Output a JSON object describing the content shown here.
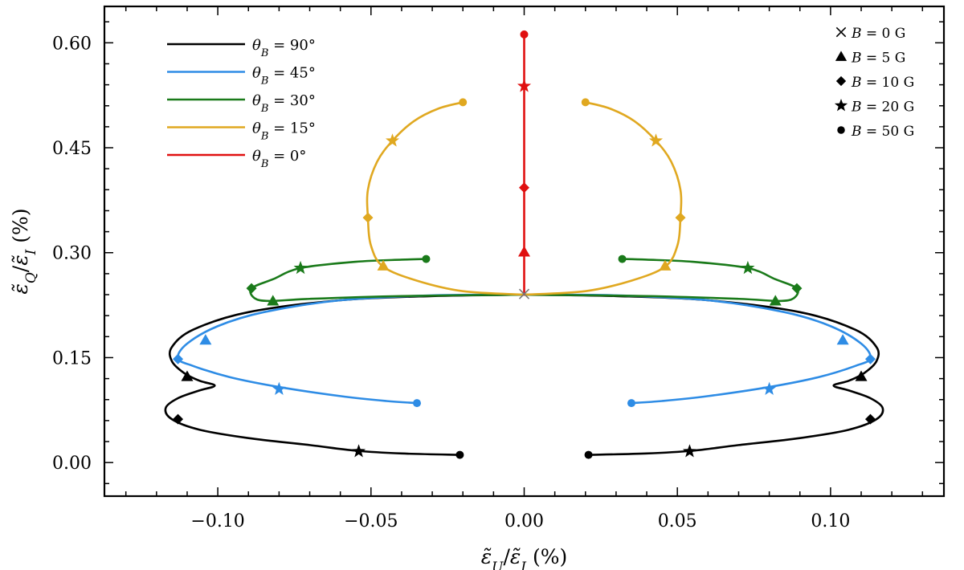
{
  "chart_data": {
    "type": "line",
    "xlabel": "ε̃U/ε̃I (%)",
    "ylabel": "ε̃Q/ε̃I (%)",
    "xlim": [
      -0.137,
      0.137
    ],
    "ylim": [
      -0.048,
      0.652
    ],
    "x_ticks": [
      {
        "value": -0.1,
        "label": "−0.10"
      },
      {
        "value": -0.05,
        "label": "−0.05"
      },
      {
        "value": 0.0,
        "label": "0.00"
      },
      {
        "value": 0.05,
        "label": "0.05"
      },
      {
        "value": 0.1,
        "label": "0.10"
      }
    ],
    "y_ticks": [
      {
        "value": 0.0,
        "label": "0.00"
      },
      {
        "value": 0.15,
        "label": "0.15"
      },
      {
        "value": 0.3,
        "label": "0.30"
      },
      {
        "value": 0.45,
        "label": "0.45"
      },
      {
        "value": 0.6,
        "label": "0.60"
      }
    ],
    "x_minor_step": 0.01,
    "y_minor_step": 0.03,
    "legend_position": "top-left",
    "marker_legend_position": "top-right",
    "series": [
      {
        "name": "θB = 90°",
        "color": "#000000",
        "path": [
          [
            0.0,
            0.24
          ],
          [
            -0.03,
            0.238
          ],
          [
            -0.06,
            0.232
          ],
          [
            -0.09,
            0.215
          ],
          [
            -0.108,
            0.19
          ],
          [
            -0.115,
            0.165
          ],
          [
            -0.115,
            0.145
          ],
          [
            -0.111,
            0.128
          ],
          [
            -0.106,
            0.117
          ],
          [
            -0.101,
            0.11
          ],
          [
            -0.106,
            0.103
          ],
          [
            -0.113,
            0.092
          ],
          [
            -0.117,
            0.078
          ],
          [
            -0.115,
            0.062
          ],
          [
            -0.106,
            0.047
          ],
          [
            -0.09,
            0.035
          ],
          [
            -0.07,
            0.025
          ],
          [
            -0.055,
            0.017
          ],
          [
            -0.04,
            0.013
          ],
          [
            -0.021,
            0.011
          ]
        ],
        "mirror": true,
        "markers": [
          {
            "B": 5,
            "x": -0.11,
            "y": 0.123
          },
          {
            "B": 10,
            "x": -0.113,
            "y": 0.062
          },
          {
            "B": 20,
            "x": -0.054,
            "y": 0.016
          },
          {
            "B": 50,
            "x": -0.021,
            "y": 0.011
          }
        ]
      },
      {
        "name": "θB = 45°",
        "color": "#2e8ce5",
        "path": [
          [
            0.0,
            0.24
          ],
          [
            -0.03,
            0.239
          ],
          [
            -0.06,
            0.232
          ],
          [
            -0.085,
            0.215
          ],
          [
            -0.1,
            0.195
          ],
          [
            -0.11,
            0.17
          ],
          [
            -0.113,
            0.149
          ],
          [
            -0.108,
            0.138
          ],
          [
            -0.096,
            0.122
          ],
          [
            -0.08,
            0.108
          ],
          [
            -0.06,
            0.095
          ],
          [
            -0.045,
            0.088
          ],
          [
            -0.035,
            0.085
          ]
        ],
        "mirror": true,
        "markers": [
          {
            "B": 5,
            "x": -0.104,
            "y": 0.175
          },
          {
            "B": 10,
            "x": -0.113,
            "y": 0.148
          },
          {
            "B": 20,
            "x": -0.08,
            "y": 0.105
          },
          {
            "B": 50,
            "x": -0.035,
            "y": 0.085
          }
        ]
      },
      {
        "name": "θB = 30°",
        "color": "#1a7a1a",
        "path": [
          [
            0.0,
            0.24
          ],
          [
            -0.04,
            0.238
          ],
          [
            -0.07,
            0.234
          ],
          [
            -0.083,
            0.231
          ],
          [
            -0.088,
            0.235
          ],
          [
            -0.089,
            0.249
          ],
          [
            -0.082,
            0.262
          ],
          [
            -0.073,
            0.278
          ],
          [
            -0.055,
            0.287
          ],
          [
            -0.04,
            0.29
          ],
          [
            -0.032,
            0.291
          ]
        ],
        "mirror": true,
        "markers": [
          {
            "B": 5,
            "x": -0.082,
            "y": 0.231
          },
          {
            "B": 10,
            "x": -0.089,
            "y": 0.249
          },
          {
            "B": 20,
            "x": -0.073,
            "y": 0.278
          },
          {
            "B": 50,
            "x": -0.032,
            "y": 0.291
          }
        ]
      },
      {
        "name": "θB = 15°",
        "color": "#e0a820",
        "path": [
          [
            0.0,
            0.24
          ],
          [
            -0.02,
            0.245
          ],
          [
            -0.035,
            0.26
          ],
          [
            -0.046,
            0.28
          ],
          [
            -0.05,
            0.31
          ],
          [
            -0.051,
            0.35
          ],
          [
            -0.051,
            0.39
          ],
          [
            -0.048,
            0.43
          ],
          [
            -0.043,
            0.46
          ],
          [
            -0.036,
            0.488
          ],
          [
            -0.028,
            0.506
          ],
          [
            -0.02,
            0.515
          ]
        ],
        "mirror": true,
        "markers": [
          {
            "B": 5,
            "x": -0.046,
            "y": 0.281
          },
          {
            "B": 10,
            "x": -0.051,
            "y": 0.35
          },
          {
            "B": 20,
            "x": -0.043,
            "y": 0.46
          },
          {
            "B": 50,
            "x": -0.02,
            "y": 0.515
          }
        ]
      },
      {
        "name": "θB = 0°",
        "color": "#e01010",
        "path": [
          [
            0.0,
            0.24
          ],
          [
            0.0,
            0.612
          ]
        ],
        "mirror": false,
        "markers": [
          {
            "B": 5,
            "x": 0.0,
            "y": 0.301
          },
          {
            "B": 10,
            "x": 0.0,
            "y": 0.393
          },
          {
            "B": 20,
            "x": 0.0,
            "y": 0.538
          },
          {
            "B": 50,
            "x": 0.0,
            "y": 0.612
          }
        ]
      }
    ],
    "origin_marker": {
      "B": 0,
      "x": 0.0,
      "y": 0.241,
      "color": "#777777"
    },
    "marker_legend": [
      {
        "symbol": "cross",
        "label": "B = 0 G"
      },
      {
        "symbol": "triangle",
        "label": "B = 5 G"
      },
      {
        "symbol": "diamond",
        "label": "B = 10 G"
      },
      {
        "symbol": "star",
        "label": "B = 20 G"
      },
      {
        "symbol": "circle",
        "label": "B = 50 G"
      }
    ]
  }
}
